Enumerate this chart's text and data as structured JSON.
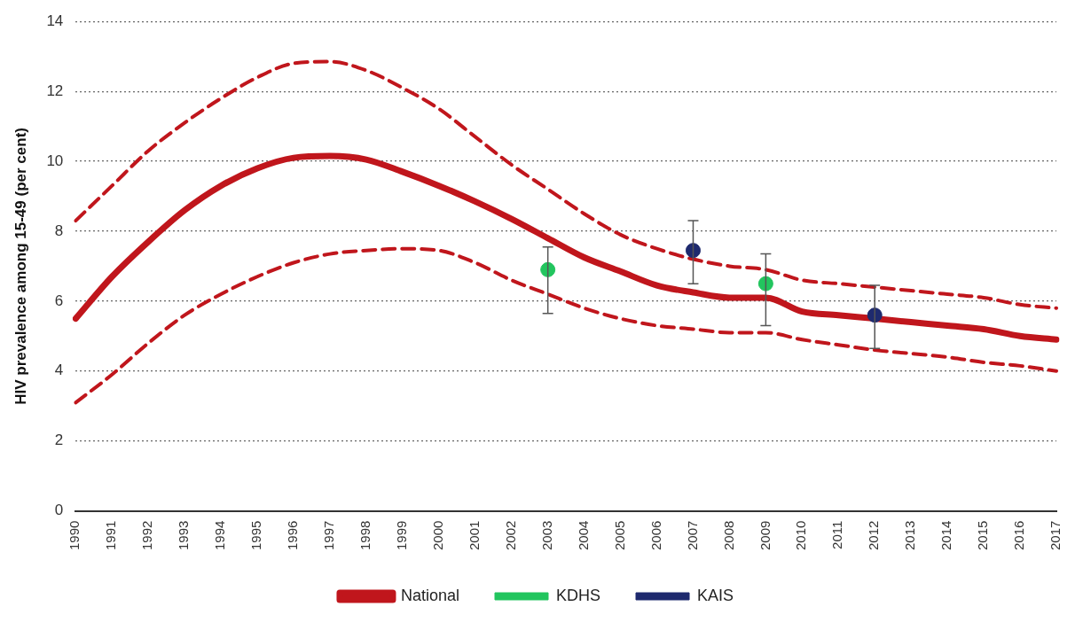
{
  "chart_data": {
    "type": "line",
    "ylabel": "HIV prevalence among 15-49 (per cent)",
    "categories": [
      "1990",
      "1991",
      "1992",
      "1993",
      "1994",
      "1995",
      "1996",
      "1997",
      "1998",
      "1999",
      "2000",
      "2001",
      "2002",
      "2003",
      "2004",
      "2005",
      "2006",
      "2007",
      "2008",
      "2009",
      "2010",
      "2011",
      "2012",
      "2013",
      "2014",
      "2015",
      "2016",
      "2017"
    ],
    "ylim": [
      0,
      14
    ],
    "yticks": [
      0,
      2,
      4,
      6,
      8,
      10,
      12,
      14
    ],
    "grid": "y",
    "legend": "bottom",
    "marker": "none",
    "series": [
      {
        "name": "National",
        "color": "#c0161c",
        "line_style": "solid",
        "values": [
          5.5,
          6.7,
          7.7,
          8.6,
          9.3,
          9.8,
          10.1,
          10.15,
          10.05,
          9.7,
          9.3,
          8.85,
          8.35,
          7.8,
          7.25,
          6.85,
          6.45,
          6.25,
          6.1,
          6.1,
          5.7,
          5.6,
          5.5,
          5.4,
          5.3,
          5.2,
          5.0,
          4.9
        ]
      },
      {
        "color": "#c0161c",
        "line_style": "dashed",
        "values": [
          8.3,
          9.3,
          10.3,
          11.1,
          11.8,
          12.4,
          12.8,
          12.85,
          12.6,
          12.1,
          11.5,
          10.7,
          9.9,
          9.2,
          8.5,
          7.9,
          7.5,
          7.2,
          7.0,
          6.9,
          6.6,
          6.5,
          6.4,
          6.3,
          6.2,
          6.1,
          5.9,
          5.8
        ]
      },
      {
        "color": "#c0161c",
        "line_style": "dashed",
        "values": [
          3.1,
          3.9,
          4.8,
          5.6,
          6.2,
          6.7,
          7.1,
          7.35,
          7.45,
          7.5,
          7.45,
          7.1,
          6.6,
          6.2,
          5.8,
          5.5,
          5.3,
          5.2,
          5.1,
          5.1,
          4.9,
          4.75,
          4.6,
          4.5,
          4.4,
          4.25,
          4.15,
          4.0
        ]
      },
      {
        "name": "KDHS",
        "type": "scatter",
        "marker": "circle",
        "color": "#22c55e",
        "values": [
          null,
          null,
          null,
          null,
          null,
          null,
          null,
          null,
          null,
          null,
          null,
          null,
          null,
          6.9,
          null,
          null,
          null,
          null,
          null,
          6.5,
          null,
          null,
          null,
          null,
          null,
          null,
          null,
          null
        ],
        "errors": [
          null,
          null,
          null,
          null,
          null,
          null,
          null,
          null,
          null,
          null,
          null,
          null,
          null,
          [
            5.65,
            7.55
          ],
          null,
          null,
          null,
          null,
          null,
          [
            5.3,
            7.35
          ],
          null,
          null,
          null,
          null,
          null,
          null,
          null,
          null
        ]
      },
      {
        "name": "KAIS",
        "type": "scatter",
        "marker": "circle",
        "color": "#1e2a6e",
        "values": [
          null,
          null,
          null,
          null,
          null,
          null,
          null,
          null,
          null,
          null,
          null,
          null,
          null,
          null,
          null,
          null,
          null,
          7.45,
          null,
          null,
          null,
          null,
          5.6,
          null,
          null,
          null,
          null,
          null
        ],
        "errors": [
          null,
          null,
          null,
          null,
          null,
          null,
          null,
          null,
          null,
          null,
          null,
          null,
          null,
          null,
          null,
          null,
          null,
          [
            6.5,
            8.3
          ],
          null,
          null,
          null,
          null,
          [
            4.65,
            6.45
          ],
          null,
          null,
          null,
          null,
          null
        ]
      }
    ]
  }
}
